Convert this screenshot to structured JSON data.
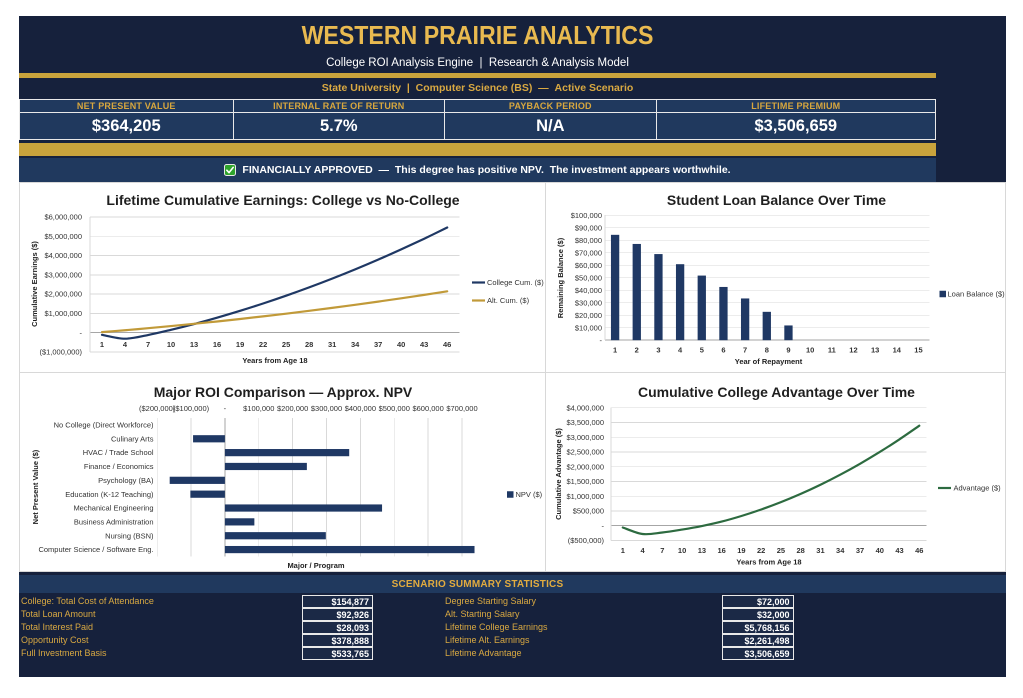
{
  "header": {
    "title": "WESTERN PRAIRIE ANALYTICS",
    "subtitle": "College ROI Analysis Engine  |  Research & Analysis Model",
    "scenario": "State University  |  Computer Science (BS)  —  Active Scenario",
    "kpis": [
      {
        "label": "NET PRESENT VALUE",
        "value": "$364,205"
      },
      {
        "label": "INTERNAL RATE OF RETURN",
        "value": "5.7%"
      },
      {
        "label": "PAYBACK PERIOD",
        "value": "N/A"
      },
      {
        "label": "LIFETIME PREMIUM",
        "value": "$3,506,659"
      }
    ],
    "status": {
      "icon": "green-check",
      "text": "FINANCIALLY APPROVED  —  This degree has positive NPV.  The investment appears worthwhile."
    }
  },
  "colors": {
    "navy_dark": "#16213C",
    "navy_panel": "#20395E",
    "gold": "#C9A33C",
    "gold_title": "#E9BA50",
    "chart_navy": "#1F3864",
    "chart_gold": "#C19A39",
    "chart_green": "#2D6B40",
    "grid": "#D9D9D9",
    "axis": "#A6A6A6",
    "chart_text": "#333333",
    "chart_title": "#1F1F1F"
  },
  "chart_data": [
    {
      "type": "line",
      "title": "Lifetime Cumulative Earnings: College vs No-College",
      "xlabel": "Years from Age 18",
      "ylabel": "Cumulative Earnings ($)",
      "x": [
        1,
        4,
        7,
        10,
        13,
        16,
        19,
        22,
        25,
        28,
        31,
        34,
        37,
        40,
        43,
        46
      ],
      "ylim": [
        -1000000,
        6000000
      ],
      "ytick_step": 1000000,
      "grid": true,
      "legend_position": "right",
      "series": [
        {
          "name": "College Cum. ($)",
          "color": "#1F3864",
          "values": [
            -110000,
            -310000,
            -120000,
            150000,
            450000,
            780000,
            1135000,
            1515000,
            1920000,
            2350000,
            2805000,
            3285000,
            3790000,
            4320000,
            4875000,
            5455000
          ]
        },
        {
          "name": "Alt. Cum. ($)",
          "color": "#C19A39",
          "values": [
            31000,
            129000,
            234000,
            344000,
            461000,
            583000,
            712000,
            847000,
            988000,
            1135000,
            1288000,
            1447000,
            1613000,
            1785000,
            1963000,
            2147000
          ]
        }
      ]
    },
    {
      "type": "bar",
      "title": "Student Loan Balance Over Time",
      "xlabel": "Year of Repayment",
      "ylabel": "Remaining Balance ($)",
      "categories": [
        1,
        2,
        3,
        4,
        5,
        6,
        7,
        8,
        9,
        10,
        11,
        12,
        13,
        14,
        15
      ],
      "ylim": [
        0,
        100000
      ],
      "ytick_step": 10000,
      "grid": true,
      "legend_position": "right",
      "series": [
        {
          "name": "Loan Balance ($)",
          "color": "#1F3864",
          "values": [
            84300,
            77000,
            68900,
            60800,
            51700,
            42600,
            33400,
            22700,
            11800,
            null,
            null,
            null,
            null,
            null,
            null
          ]
        }
      ]
    },
    {
      "type": "hbar",
      "title": "Major ROI Comparison — Approx. NPV",
      "xlabel": "Major / Program",
      "ylabel": "Net Present Value ($)",
      "categories": [
        "No College (Direct Workforce)",
        "Culinary Arts",
        "HVAC / Trade School",
        "Finance / Economics",
        "Psychology (BA)",
        "Education (K-12 Teaching)",
        "Mechanical Engineering",
        "Business Administration",
        "Nursing (BSN)",
        "Computer Science / Software Eng."
      ],
      "xlim": [
        -200000,
        700000
      ],
      "xtick_step": 100000,
      "grid": true,
      "legend_position": "right",
      "series": [
        {
          "name": "NPV ($)",
          "color": "#1F3864",
          "values": [
            0,
            -94000,
            367000,
            242000,
            -163000,
            -102000,
            464000,
            87000,
            298000,
            737000
          ]
        }
      ]
    },
    {
      "type": "line",
      "title": "Cumulative College Advantage Over Time",
      "xlabel": "Years from Age 18",
      "ylabel": "Cumulative  Advantage ($)",
      "x": [
        1,
        4,
        7,
        10,
        13,
        16,
        19,
        22,
        25,
        28,
        31,
        34,
        37,
        40,
        43,
        46
      ],
      "ylim": [
        -500000,
        4000000
      ],
      "ytick_step": 500000,
      "grid": true,
      "legend_position": "right",
      "series": [
        {
          "name": "Advantage ($)",
          "color": "#2D6B40",
          "values": [
            -60000,
            -280000,
            -230000,
            -130000,
            -10000,
            140000,
            330000,
            550000,
            800000,
            1080000,
            1390000,
            1730000,
            2100000,
            2500000,
            2930000,
            3390000
          ]
        }
      ]
    }
  ],
  "summary": {
    "title": "SCENARIO SUMMARY STATISTICS",
    "left": [
      {
        "label": "College: Total Cost of Attendance",
        "value": "$154,877"
      },
      {
        "label": "Total Loan Amount",
        "value": "$92,926"
      },
      {
        "label": "Total Interest Paid",
        "value": "$28,093"
      },
      {
        "label": "Opportunity Cost",
        "value": "$378,888"
      },
      {
        "label": "Full Investment Basis",
        "value": "$533,765"
      }
    ],
    "right": [
      {
        "label": "Degree Starting Salary",
        "value": "$72,000"
      },
      {
        "label": "Alt. Starting Salary",
        "value": "$32,000"
      },
      {
        "label": "Lifetime College Earnings",
        "value": "$5,768,156"
      },
      {
        "label": "Lifetime Alt. Earnings",
        "value": "$2,261,498"
      },
      {
        "label": "Lifetime Advantage",
        "value": "$3,506,659"
      }
    ]
  }
}
